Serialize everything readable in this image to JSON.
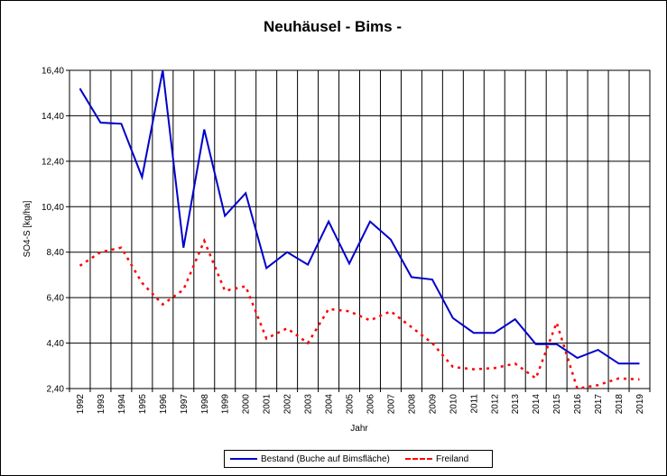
{
  "chart_data": {
    "type": "line",
    "title": "Neuhäusel - Bims -",
    "xlabel": "Jahr",
    "ylabel": "SO4-S [kg/ha]",
    "x": [
      "1992",
      "1993",
      "1994",
      "1995",
      "1996",
      "1997",
      "1998",
      "1999",
      "2000",
      "2001",
      "2002",
      "2003",
      "2004",
      "2005",
      "2006",
      "2007",
      "2008",
      "2009",
      "2010",
      "2011",
      "2012",
      "2013",
      "2014",
      "2015",
      "2016",
      "2017",
      "2018",
      "2019"
    ],
    "yticks": [
      "2,40",
      "4,40",
      "6,40",
      "8,40",
      "10,40",
      "12,40",
      "14,40",
      "16,40"
    ],
    "ylim": [
      2.4,
      16.4
    ],
    "grid": true,
    "legend_position": "bottom",
    "series": [
      {
        "name": "Bestand (Buche auf Bimsfläche)",
        "color": "#0000cc",
        "style": "solid",
        "values": [
          15.6,
          14.1,
          14.05,
          11.7,
          16.4,
          8.6,
          13.8,
          10.0,
          11.0,
          7.7,
          8.4,
          7.85,
          9.75,
          7.9,
          9.75,
          8.95,
          7.3,
          7.2,
          5.5,
          4.85,
          4.85,
          5.45,
          4.35,
          4.35,
          3.75,
          4.1,
          3.5,
          3.5
        ]
      },
      {
        "name": "Freiland",
        "color": "#ff0000",
        "style": "dashed",
        "values": [
          7.8,
          8.4,
          8.6,
          7.05,
          6.1,
          6.75,
          8.9,
          6.7,
          6.9,
          4.6,
          5.05,
          4.4,
          5.9,
          5.8,
          5.4,
          5.8,
          5.1,
          4.4,
          3.35,
          3.25,
          3.3,
          3.5,
          2.85,
          5.3,
          2.4,
          2.55,
          2.85,
          2.8
        ]
      }
    ]
  }
}
